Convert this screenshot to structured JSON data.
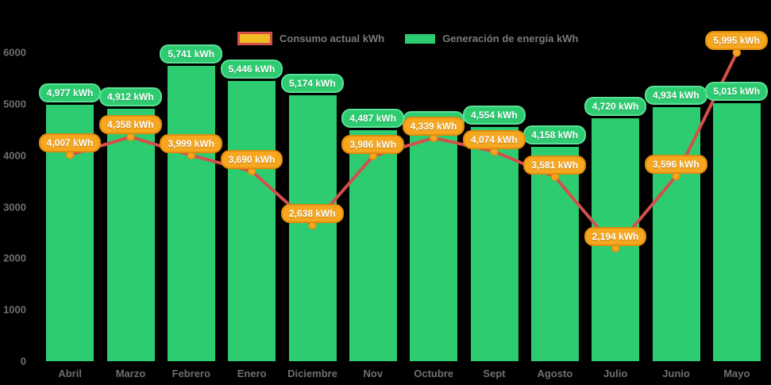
{
  "chart_data": {
    "type": "combo-bar-line",
    "title": "",
    "categories": [
      "Abril",
      "Marzo",
      "Febrero",
      "Enero",
      "Diciembre",
      "Nov",
      "Octubre",
      "Sept",
      "Agosto",
      "Julio",
      "Junio",
      "Mayo"
    ],
    "series": [
      {
        "name": "Generación de energía kWh",
        "type": "bar",
        "color": "#2dcc71",
        "label_border_color": "#5be096",
        "values": [
          4977,
          4912,
          5741,
          5446,
          5174,
          4487,
          4440,
          4554,
          4158,
          4720,
          4934,
          5015
        ],
        "labels": [
          "4,977 kWh",
          "4,912 kWh",
          "5,741 kWh",
          "5,446 kWh",
          "5,174 kWh",
          "4,487 kWh",
          "4,440 kWh",
          "4,554 kWh",
          "4,158 kWh",
          "4,720 kWh",
          "4,934 kWh",
          "5,015 kWh"
        ]
      },
      {
        "name": "Consumo actual kWh",
        "type": "line",
        "color": "#d3504a",
        "marker_color": "#f6a620",
        "marker_stroke_color": "#e08c0e",
        "label_fill": "#f6a71f",
        "label_border_color": "#e08c0e",
        "legend_fill": "#f0bc22",
        "values": [
          4007,
          4358,
          3999,
          3690,
          2638,
          3986,
          4339,
          4074,
          3581,
          2194,
          3596,
          5995
        ],
        "labels": [
          "4,007 kWh",
          "4,358 kWh",
          "3,999 kWh",
          "3,690 kWh",
          "2,638 kWh",
          "3,986 kWh",
          "4,339 kWh",
          "4,074 kWh",
          "3,581 kWh",
          "2,194 kWh",
          "3,596 kWh",
          "5,995 kWh"
        ]
      }
    ],
    "value_suffix": " kWh",
    "ylim": [
      0,
      6000
    ],
    "yticks": [
      0,
      1000,
      2000,
      3000,
      4000,
      5000,
      6000
    ],
    "grid": false,
    "legend_position": "top",
    "background": "#000000",
    "axis_text_color": "#6f6f6f",
    "legend_text_color": "#7a7a7a"
  }
}
